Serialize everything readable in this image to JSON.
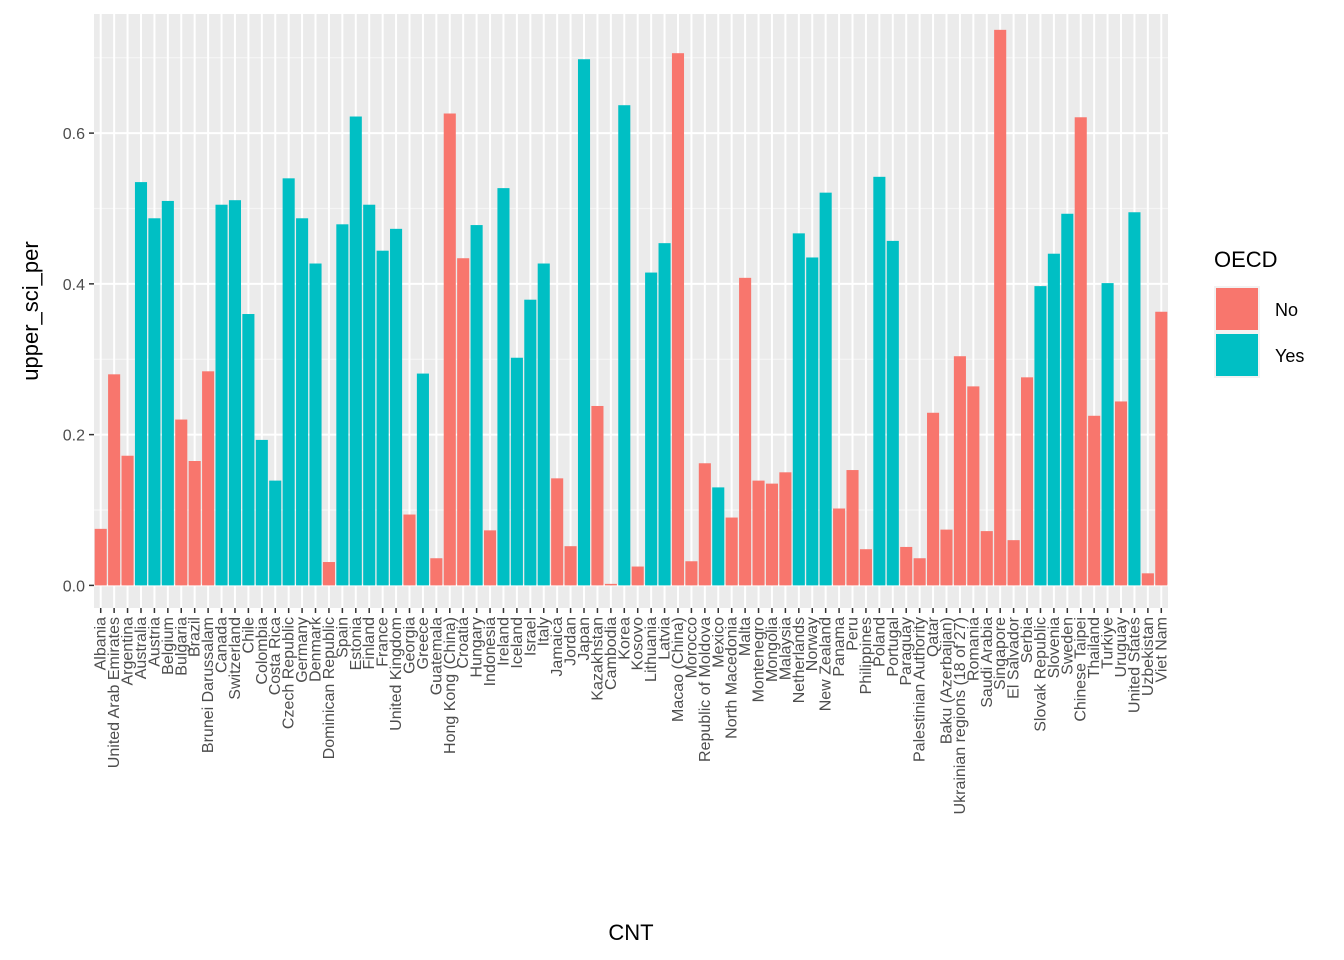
{
  "chart_data": {
    "type": "bar",
    "xlabel": "CNT",
    "ylabel": "upper_sci_per",
    "ylim": [
      -0.03,
      0.758
    ],
    "yticks": [
      0.0,
      0.2,
      0.4,
      0.6
    ],
    "ytick_labels": [
      "0.0",
      "0.2",
      "0.4",
      "0.6"
    ],
    "grid": true,
    "legend": {
      "title": "OECD",
      "placement": "right",
      "entries": [
        {
          "label": "No",
          "color": "#F8766D"
        },
        {
          "label": "Yes",
          "color": "#00BFC4"
        }
      ]
    },
    "categories": [
      "Albania",
      "United Arab Emirates",
      "Argentina",
      "Australia",
      "Austria",
      "Belgium",
      "Bulgaria",
      "Brazil",
      "Brunei Darussalam",
      "Canada",
      "Switzerland",
      "Chile",
      "Colombia",
      "Costa Rica",
      "Czech Republic",
      "Germany",
      "Denmark",
      "Dominican Republic",
      "Spain",
      "Estonia",
      "Finland",
      "France",
      "United Kingdom",
      "Georgia",
      "Greece",
      "Guatemala",
      "Hong Kong (China)",
      "Croatia",
      "Hungary",
      "Indonesia",
      "Ireland",
      "Iceland",
      "Israel",
      "Italy",
      "Jamaica",
      "Jordan",
      "Japan",
      "Kazakhstan",
      "Cambodia",
      "Korea",
      "Kosovo",
      "Lithuania",
      "Latvia",
      "Macao (China)",
      "Morocco",
      "Republic of Moldova",
      "Mexico",
      "North Macedonia",
      "Malta",
      "Montenegro",
      "Mongolia",
      "Malaysia",
      "Netherlands",
      "Norway",
      "New Zealand",
      "Panama",
      "Peru",
      "Philippines",
      "Poland",
      "Portugal",
      "Paraguay",
      "Palestinian Authority",
      "Qatar",
      "Baku (Azerbaijan)",
      "Ukrainian regions (18 of 27)",
      "Romania",
      "Saudi Arabia",
      "Singapore",
      "El Salvador",
      "Serbia",
      "Slovak Republic",
      "Slovenia",
      "Sweden",
      "Chinese Taipei",
      "Thailand",
      "Turkiye",
      "Uruguay",
      "United States",
      "Uzbekistan",
      "Viet Nam"
    ],
    "values": [
      0.075,
      0.28,
      0.172,
      0.535,
      0.487,
      0.51,
      0.22,
      0.165,
      0.284,
      0.505,
      0.511,
      0.36,
      0.193,
      0.139,
      0.54,
      0.487,
      0.427,
      0.031,
      0.479,
      0.622,
      0.505,
      0.444,
      0.473,
      0.094,
      0.281,
      0.036,
      0.626,
      0.434,
      0.478,
      0.073,
      0.527,
      0.302,
      0.379,
      0.427,
      0.142,
      0.052,
      0.698,
      0.238,
      0.002,
      0.637,
      0.025,
      0.415,
      0.454,
      0.706,
      0.032,
      0.162,
      0.13,
      0.09,
      0.408,
      0.139,
      0.135,
      0.15,
      0.467,
      0.435,
      0.521,
      0.102,
      0.153,
      0.048,
      0.542,
      0.457,
      0.051,
      0.036,
      0.229,
      0.074,
      0.304,
      0.264,
      0.072,
      0.737,
      0.06,
      0.276,
      0.397,
      0.44,
      0.493,
      0.621,
      0.225,
      0.401,
      0.244,
      0.495,
      0.016,
      0.363
    ],
    "oecd": [
      "No",
      "No",
      "No",
      "Yes",
      "Yes",
      "Yes",
      "No",
      "No",
      "No",
      "Yes",
      "Yes",
      "Yes",
      "Yes",
      "Yes",
      "Yes",
      "Yes",
      "Yes",
      "No",
      "Yes",
      "Yes",
      "Yes",
      "Yes",
      "Yes",
      "No",
      "Yes",
      "No",
      "No",
      "No",
      "Yes",
      "No",
      "Yes",
      "Yes",
      "Yes",
      "Yes",
      "No",
      "No",
      "Yes",
      "No",
      "No",
      "Yes",
      "No",
      "Yes",
      "Yes",
      "No",
      "No",
      "No",
      "Yes",
      "No",
      "No",
      "No",
      "No",
      "No",
      "Yes",
      "Yes",
      "Yes",
      "No",
      "No",
      "No",
      "Yes",
      "Yes",
      "No",
      "No",
      "No",
      "No",
      "No",
      "No",
      "No",
      "No",
      "No",
      "No",
      "Yes",
      "Yes",
      "Yes",
      "No",
      "No",
      "Yes",
      "No",
      "Yes",
      "No",
      "No"
    ]
  }
}
